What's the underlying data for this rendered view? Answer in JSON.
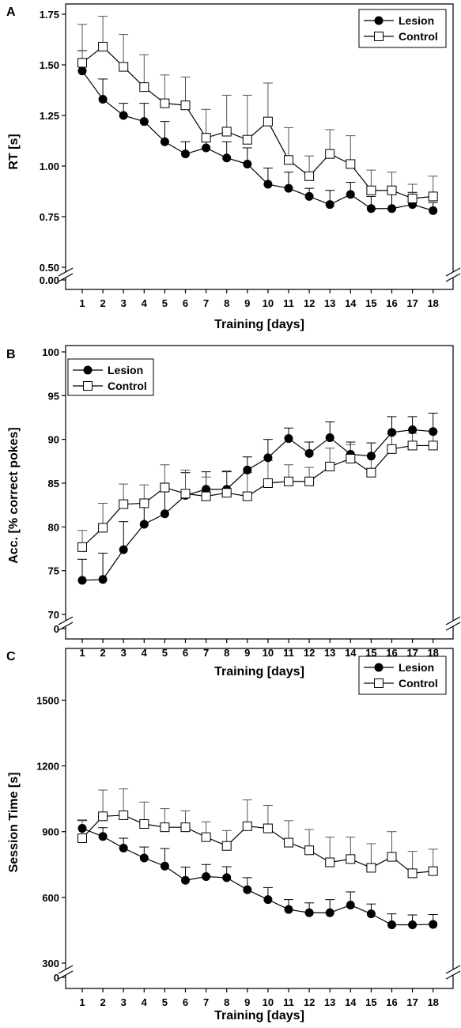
{
  "chart_data": [
    {
      "panel": "A",
      "type": "line",
      "xlabel": "Training [days]",
      "ylabel": "RT [s]",
      "ylim": [
        0.5,
        1.75
      ],
      "yticks": [
        "0.50",
        "0.75",
        "1.00",
        "1.25",
        "1.50",
        "1.75"
      ],
      "ybreak_label": "0.00",
      "x": [
        1,
        2,
        3,
        4,
        5,
        6,
        7,
        8,
        9,
        10,
        11,
        12,
        13,
        14,
        15,
        16,
        17,
        18
      ],
      "grid": false,
      "legend_position": "top-right",
      "series": [
        {
          "name": "Lesion",
          "marker": "filled-circle",
          "color": "#000000",
          "values": [
            1.47,
            1.33,
            1.25,
            1.22,
            1.12,
            1.06,
            1.09,
            1.04,
            1.01,
            0.91,
            0.89,
            0.85,
            0.81,
            0.86,
            0.79,
            0.79,
            0.81,
            0.78
          ],
          "errors": [
            0.1,
            0.1,
            0.06,
            0.09,
            0.1,
            0.06,
            0.05,
            0.08,
            0.08,
            0.08,
            0.08,
            0.04,
            0.07,
            0.06,
            0.06,
            0.07,
            0.06,
            0.04
          ]
        },
        {
          "name": "Control",
          "marker": "open-square",
          "color": "#000000",
          "values": [
            1.51,
            1.59,
            1.49,
            1.39,
            1.31,
            1.3,
            1.14,
            1.17,
            1.13,
            1.22,
            1.03,
            0.95,
            1.06,
            1.01,
            0.88,
            0.88,
            0.84,
            0.85
          ],
          "errors": [
            0.19,
            0.15,
            0.16,
            0.16,
            0.14,
            0.14,
            0.14,
            0.18,
            0.22,
            0.19,
            0.16,
            0.1,
            0.12,
            0.14,
            0.1,
            0.09,
            0.07,
            0.1
          ]
        }
      ]
    },
    {
      "panel": "B",
      "type": "line",
      "xlabel": "Training [days]",
      "ylabel": "Acc. [% correct pokes]",
      "ylim": [
        70,
        100
      ],
      "yticks": [
        "70",
        "75",
        "80",
        "85",
        "90",
        "95",
        "100"
      ],
      "ybreak_label": "0",
      "x": [
        1,
        2,
        3,
        4,
        5,
        6,
        7,
        8,
        9,
        10,
        11,
        12,
        13,
        14,
        15,
        16,
        17,
        18
      ],
      "grid": false,
      "legend_position": "top-left",
      "series": [
        {
          "name": "Lesion",
          "marker": "filled-circle",
          "color": "#000000",
          "values": [
            73.9,
            74.0,
            77.4,
            80.3,
            81.5,
            83.6,
            84.3,
            84.3,
            86.5,
            87.9,
            90.1,
            88.4,
            90.2,
            88.3,
            88.1,
            90.8,
            91.1,
            90.9
          ],
          "errors": [
            2.4,
            3.0,
            3.2,
            2.7,
            3.5,
            2.6,
            2.0,
            2.0,
            1.5,
            2.1,
            1.2,
            1.3,
            1.8,
            1.4,
            1.5,
            1.8,
            1.5,
            2.1
          ]
        },
        {
          "name": "Control",
          "marker": "open-square",
          "color": "#000000",
          "values": [
            77.7,
            79.9,
            82.6,
            82.7,
            84.5,
            83.8,
            83.5,
            83.9,
            83.5,
            85.0,
            85.2,
            85.2,
            86.9,
            87.8,
            86.2,
            88.9,
            89.3,
            89.3
          ],
          "errors": [
            1.9,
            2.8,
            2.3,
            2.1,
            2.6,
            2.7,
            2.2,
            2.5,
            2.7,
            2.6,
            1.9,
            1.6,
            2.1,
            1.6,
            1.9,
            1.7,
            1.4,
            1.6
          ]
        }
      ]
    },
    {
      "panel": "C",
      "type": "line",
      "xlabel": "Training [days]",
      "ylabel": "Session Time [s]",
      "ylim": [
        300,
        1700
      ],
      "yticks": [
        "300",
        "600",
        "900",
        "1200",
        "1500"
      ],
      "ybreak_label": "0",
      "x": [
        1,
        2,
        3,
        4,
        5,
        6,
        7,
        8,
        9,
        10,
        11,
        12,
        13,
        14,
        15,
        16,
        17,
        18
      ],
      "grid": false,
      "legend_position": "top-right",
      "series": [
        {
          "name": "Lesion",
          "marker": "filled-circle",
          "color": "#000000",
          "values": [
            915,
            878,
            825,
            780,
            743,
            678,
            695,
            690,
            635,
            590,
            545,
            530,
            530,
            565,
            525,
            475,
            475,
            477
          ],
          "errors": [
            38,
            40,
            45,
            50,
            80,
            60,
            55,
            50,
            55,
            55,
            45,
            45,
            60,
            60,
            45,
            50,
            45,
            45
          ]
        },
        {
          "name": "Control",
          "marker": "open-square",
          "color": "#000000",
          "values": [
            870,
            970,
            975,
            935,
            920,
            920,
            875,
            835,
            925,
            915,
            850,
            815,
            760,
            775,
            735,
            785,
            710,
            720
          ],
          "errors": [
            80,
            120,
            120,
            100,
            85,
            75,
            70,
            70,
            120,
            105,
            100,
            95,
            115,
            100,
            110,
            115,
            100,
            100
          ]
        }
      ]
    }
  ],
  "panels_text": [
    {
      "letter": "A",
      "xlabel": "Training [days]",
      "ylabel": "RT [s]"
    },
    {
      "letter": "B",
      "xlabel": "Training [days]",
      "ylabel": "Acc. [% correct pokes]"
    },
    {
      "letter": "C",
      "xlabel": "Training [days]",
      "ylabel": "Session Time [s]"
    }
  ]
}
